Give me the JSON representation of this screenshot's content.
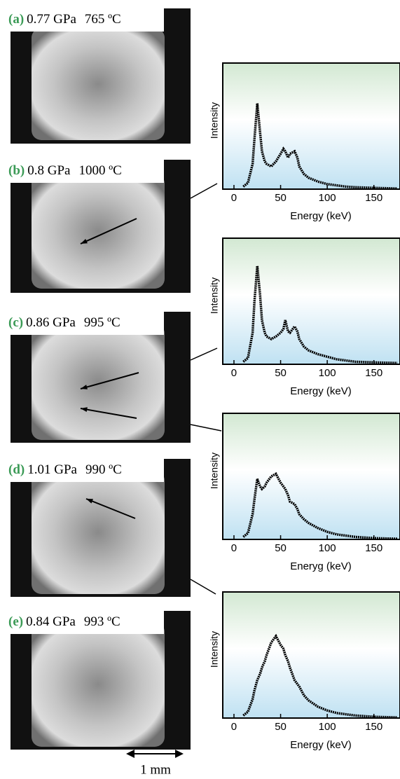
{
  "panels": [
    {
      "letter": "(a)",
      "pressure": "0.77 GPa",
      "temperature": "765 ºC"
    },
    {
      "letter": "(b)",
      "pressure": "0.8 GPa",
      "temperature": "1000 ºC"
    },
    {
      "letter": "(c)",
      "pressure": "0.86 GPa",
      "temperature": "995 ºC"
    },
    {
      "letter": "(d)",
      "pressure": "1.01 GPa",
      "temperature": "990 ºC"
    },
    {
      "letter": "(e)",
      "pressure": "0.84 GPa",
      "temperature": "993 ºC"
    }
  ],
  "scale_bar": "1 mm",
  "chart_data": [
    {
      "type": "line",
      "y_label": "Intensity",
      "x_label": "Energy (keV)",
      "color": "#000000",
      "x": [
        10,
        15,
        20,
        22,
        25,
        28,
        30,
        33,
        35,
        40,
        45,
        50,
        53,
        55,
        58,
        60,
        65,
        68,
        70,
        75,
        80,
        90,
        100,
        110,
        120,
        130,
        150,
        175
      ],
      "values": [
        2,
        5,
        20,
        40,
        68,
        45,
        30,
        22,
        20,
        18,
        22,
        28,
        32,
        30,
        25,
        28,
        30,
        25,
        18,
        12,
        9,
        6,
        4,
        3,
        2,
        1.5,
        1,
        0.5
      ],
      "xlim": [
        -12,
        178
      ],
      "ylim": [
        0,
        100
      ],
      "xticks": [
        0,
        50,
        100,
        150
      ]
    },
    {
      "type": "line",
      "y_label": "Intensity",
      "x_label": "Energy (keV)",
      "color": "#000000",
      "x": [
        10,
        15,
        20,
        22,
        25,
        28,
        30,
        33,
        35,
        40,
        45,
        50,
        53,
        55,
        58,
        60,
        65,
        68,
        70,
        75,
        80,
        90,
        100,
        110,
        120,
        130,
        150,
        175
      ],
      "values": [
        2,
        5,
        25,
        50,
        78,
        55,
        35,
        25,
        22,
        20,
        22,
        25,
        28,
        35,
        26,
        25,
        30,
        26,
        20,
        14,
        11,
        8,
        6,
        4,
        3,
        2,
        1.5,
        1
      ],
      "xlim": [
        -12,
        178
      ],
      "ylim": [
        0,
        100
      ],
      "xticks": [
        0,
        50,
        100,
        150
      ]
    },
    {
      "type": "line",
      "y_label": "Intensity",
      "x_label": "Eneryg (keV)",
      "color": "#000000",
      "x": [
        10,
        15,
        20,
        22,
        25,
        28,
        30,
        33,
        35,
        40,
        45,
        50,
        53,
        55,
        58,
        60,
        65,
        68,
        70,
        75,
        80,
        90,
        100,
        110,
        120,
        130,
        150,
        175
      ],
      "values": [
        2,
        5,
        20,
        32,
        48,
        42,
        40,
        42,
        45,
        50,
        52,
        45,
        42,
        40,
        35,
        30,
        28,
        24,
        20,
        16,
        13,
        9,
        6,
        4,
        3,
        2,
        1,
        0.5
      ],
      "xlim": [
        -12,
        178
      ],
      "ylim": [
        0,
        100
      ],
      "xticks": [
        0,
        50,
        100,
        150
      ]
    },
    {
      "type": "line",
      "y_label": "Intensity",
      "x_label": "Energy (keV)",
      "color": "#000000",
      "x": [
        10,
        15,
        20,
        22,
        25,
        28,
        30,
        33,
        35,
        40,
        45,
        50,
        53,
        55,
        58,
        60,
        65,
        68,
        70,
        75,
        80,
        90,
        100,
        110,
        120,
        130,
        150,
        175
      ],
      "values": [
        2,
        5,
        15,
        22,
        30,
        35,
        40,
        45,
        50,
        60,
        65,
        58,
        55,
        50,
        45,
        40,
        30,
        27,
        25,
        18,
        14,
        9,
        6,
        4,
        3,
        2,
        1,
        0.5
      ],
      "xlim": [
        -12,
        178
      ],
      "ylim": [
        0,
        100
      ],
      "xticks": [
        0,
        50,
        100,
        150
      ]
    }
  ]
}
